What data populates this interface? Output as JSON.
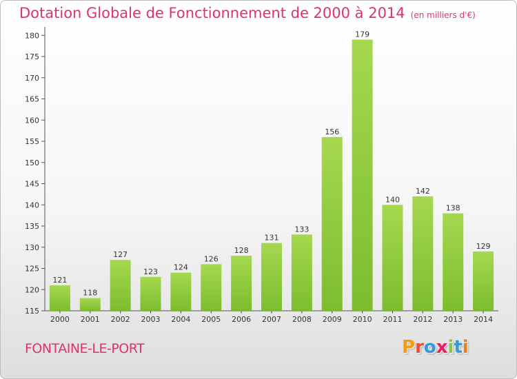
{
  "header": {
    "title": "Dotation Globale de Fonctionnement de 2000 à 2014",
    "unit": "(en milliers d'€)"
  },
  "footer": {
    "commune": "FONTAINE-LE-PORT",
    "logo_letters": [
      "P",
      "r",
      "o",
      "x",
      "i",
      "t",
      "i"
    ],
    "logo_colors": [
      "#f39c12",
      "#e74c3c",
      "#3498db",
      "#e91e63",
      "#8bc34a",
      "#3498db",
      "#e67e22"
    ]
  },
  "chart_data": {
    "type": "bar",
    "categories": [
      "2000",
      "2001",
      "2002",
      "2003",
      "2004",
      "2005",
      "2006",
      "2007",
      "2008",
      "2009",
      "2010",
      "2011",
      "2012",
      "2013",
      "2014"
    ],
    "values": [
      121,
      118,
      127,
      123,
      124,
      126,
      128,
      131,
      133,
      156,
      179,
      140,
      142,
      138,
      129
    ],
    "data_labels": [
      "121",
      "118",
      "127",
      "123",
      "124",
      "126",
      "128",
      "131",
      "133",
      "156",
      "179",
      "140",
      "142",
      "138",
      "129"
    ],
    "yticks": [
      "115",
      "120",
      "125",
      "130",
      "135",
      "140",
      "145",
      "150",
      "155",
      "160",
      "165",
      "170",
      "175",
      "180"
    ],
    "ylim": [
      115,
      182
    ],
    "grid": false,
    "bar_color": "#7cbd2e",
    "bar_color_light": "#a6d84f"
  }
}
